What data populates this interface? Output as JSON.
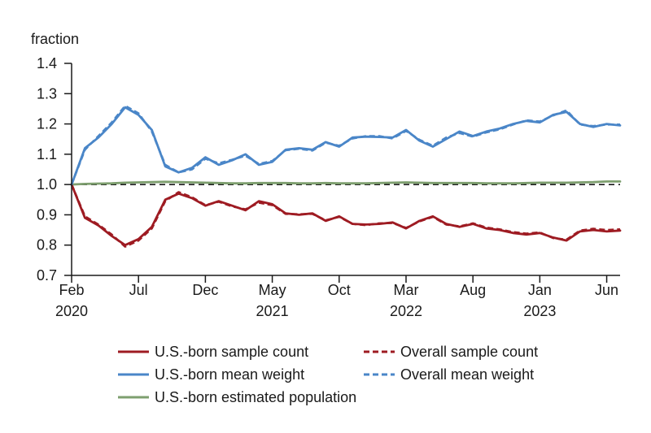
{
  "chart_data": {
    "type": "line",
    "ylabel": "fraction",
    "ylim": [
      0.7,
      1.4
    ],
    "yticks": [
      0.7,
      0.8,
      0.9,
      1.0,
      1.1,
      1.2,
      1.3,
      1.4
    ],
    "xlim": [
      0,
      41
    ],
    "xticks": [
      {
        "pos": 0,
        "label": "Feb",
        "year": "2020"
      },
      {
        "pos": 5,
        "label": "Jul",
        "year": ""
      },
      {
        "pos": 10,
        "label": "Dec",
        "year": ""
      },
      {
        "pos": 15,
        "label": "May",
        "year": "2021"
      },
      {
        "pos": 20,
        "label": "Oct",
        "year": ""
      },
      {
        "pos": 25,
        "label": "Mar",
        "year": "2022"
      },
      {
        "pos": 30,
        "label": "Aug",
        "year": ""
      },
      {
        "pos": 35,
        "label": "Jan",
        "year": "2023"
      },
      {
        "pos": 40,
        "label": "Jun",
        "year": ""
      }
    ],
    "reference_line": 1.0,
    "grid": false,
    "legend_position": "bottom",
    "x": [
      0,
      1,
      2,
      3,
      4,
      5,
      6,
      7,
      8,
      9,
      10,
      11,
      12,
      13,
      14,
      15,
      16,
      17,
      18,
      19,
      20,
      21,
      22,
      23,
      24,
      25,
      26,
      27,
      28,
      29,
      30,
      31,
      32,
      33,
      34,
      35,
      36,
      37,
      38,
      39,
      40,
      41
    ],
    "series": [
      {
        "name": "U.S.-born sample count",
        "color": "#9e1b22",
        "dashed": false,
        "values": [
          1.0,
          0.89,
          0.865,
          0.83,
          0.8,
          0.82,
          0.86,
          0.95,
          0.97,
          0.955,
          0.93,
          0.945,
          0.93,
          0.915,
          0.945,
          0.935,
          0.905,
          0.9,
          0.905,
          0.88,
          0.895,
          0.87,
          0.868,
          0.87,
          0.875,
          0.855,
          0.88,
          0.895,
          0.87,
          0.86,
          0.87,
          0.855,
          0.85,
          0.84,
          0.835,
          0.84,
          0.825,
          0.815,
          0.845,
          0.85,
          0.845,
          0.848
        ]
      },
      {
        "name": "Overall sample count",
        "color": "#9e1b22",
        "dashed": true,
        "values": [
          1.0,
          0.895,
          0.868,
          0.835,
          0.795,
          0.815,
          0.855,
          0.945,
          0.975,
          0.958,
          0.932,
          0.943,
          0.928,
          0.918,
          0.94,
          0.932,
          0.903,
          0.902,
          0.903,
          0.882,
          0.893,
          0.87,
          0.866,
          0.872,
          0.873,
          0.857,
          0.878,
          0.893,
          0.868,
          0.862,
          0.872,
          0.858,
          0.852,
          0.843,
          0.838,
          0.842,
          0.823,
          0.818,
          0.848,
          0.854,
          0.85,
          0.852
        ]
      },
      {
        "name": "U.S.-born mean weight",
        "color": "#4a86c8",
        "dashed": false,
        "values": [
          1.0,
          1.12,
          1.155,
          1.2,
          1.255,
          1.23,
          1.18,
          1.06,
          1.04,
          1.055,
          1.09,
          1.065,
          1.08,
          1.1,
          1.065,
          1.075,
          1.115,
          1.12,
          1.115,
          1.14,
          1.125,
          1.155,
          1.158,
          1.157,
          1.155,
          1.18,
          1.145,
          1.125,
          1.15,
          1.175,
          1.16,
          1.175,
          1.185,
          1.2,
          1.21,
          1.205,
          1.23,
          1.24,
          1.2,
          1.19,
          1.2,
          1.195
        ]
      },
      {
        "name": "Overall mean weight",
        "color": "#4a86c8",
        "dashed": true,
        "values": [
          1.0,
          1.115,
          1.16,
          1.205,
          1.26,
          1.235,
          1.175,
          1.065,
          1.04,
          1.05,
          1.085,
          1.07,
          1.082,
          1.095,
          1.068,
          1.078,
          1.113,
          1.118,
          1.112,
          1.138,
          1.128,
          1.152,
          1.16,
          1.16,
          1.152,
          1.177,
          1.148,
          1.128,
          1.155,
          1.17,
          1.158,
          1.172,
          1.182,
          1.198,
          1.212,
          1.208,
          1.228,
          1.245,
          1.198,
          1.193,
          1.198,
          1.198
        ]
      },
      {
        "name": "U.S.-born estimated population",
        "color": "#7e9f6f",
        "dashed": false,
        "values": [
          1.0,
          1.002,
          1.003,
          1.004,
          1.006,
          1.007,
          1.008,
          1.009,
          1.008,
          1.007,
          1.006,
          1.005,
          1.004,
          1.004,
          1.005,
          1.005,
          1.005,
          1.004,
          1.004,
          1.005,
          1.004,
          1.004,
          1.004,
          1.005,
          1.006,
          1.007,
          1.006,
          1.005,
          1.005,
          1.005,
          1.005,
          1.004,
          1.004,
          1.004,
          1.005,
          1.006,
          1.006,
          1.006,
          1.007,
          1.008,
          1.01,
          1.01
        ]
      }
    ]
  }
}
